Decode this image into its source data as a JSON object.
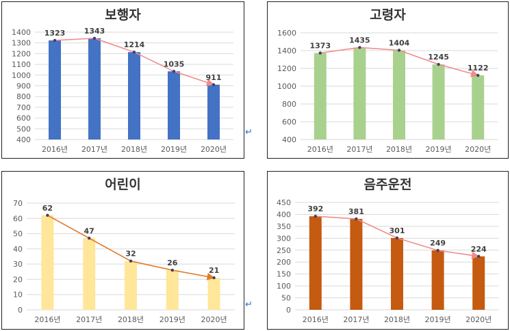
{
  "chart_data": [
    {
      "type": "bar",
      "title": "보행자",
      "categories": [
        "2016년",
        "2017년",
        "2018년",
        "2019년",
        "2020년"
      ],
      "values": [
        1323,
        1343,
        1214,
        1035,
        911
      ],
      "ylim": [
        400,
        1400
      ],
      "yticks": [
        400,
        500,
        600,
        700,
        800,
        900,
        1000,
        1100,
        1200,
        1300,
        1400
      ],
      "bar_color": "#4472c4",
      "trend_color": "#f08b8b",
      "grid": true
    },
    {
      "type": "bar",
      "title": "고령자",
      "categories": [
        "2016년",
        "2017년",
        "2018년",
        "2019년",
        "2020년"
      ],
      "values": [
        1373,
        1435,
        1404,
        1245,
        1122
      ],
      "ylim": [
        400,
        1600
      ],
      "yticks": [
        400,
        600,
        800,
        1000,
        1200,
        1400,
        1600
      ],
      "bar_color": "#a9d18e",
      "trend_color": "#f08b8b",
      "grid": true
    },
    {
      "type": "bar",
      "title": "어린이",
      "categories": [
        "2016년",
        "2017년",
        "2018년",
        "2019년",
        "2020년"
      ],
      "values": [
        62,
        47,
        32,
        26,
        21
      ],
      "ylim": [
        0,
        70
      ],
      "yticks": [
        0,
        10,
        20,
        30,
        40,
        50,
        60,
        70
      ],
      "bar_color": "#ffe699",
      "trend_color": "#e07b2a",
      "grid": true
    },
    {
      "type": "bar",
      "title": "음주운전",
      "categories": [
        "2016년",
        "2017년",
        "2018년",
        "2019년",
        "2020년"
      ],
      "values": [
        392,
        381,
        301,
        249,
        224
      ],
      "ylim": [
        0,
        450
      ],
      "yticks": [
        0,
        50,
        100,
        150,
        200,
        250,
        300,
        350,
        400,
        450
      ],
      "bar_color": "#c55a11",
      "trend_color": "#f08b8b",
      "grid": true
    }
  ],
  "return_mark": "↵"
}
